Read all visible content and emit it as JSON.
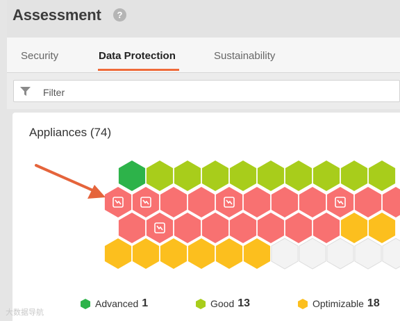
{
  "header": {
    "title": "Assessment",
    "help_icon": "question-mark-icon",
    "help_glyph": "?"
  },
  "tabs": [
    {
      "label": "Security",
      "active": false
    },
    {
      "label": "Data Protection",
      "active": true
    },
    {
      "label": "Sustainability",
      "active": false
    }
  ],
  "filter": {
    "placeholder": "Filter",
    "value": "",
    "icon": "filter-funnel-icon"
  },
  "panel": {
    "title": "Appliances (74)"
  },
  "colors": {
    "advanced": "#2db34a",
    "good": "#a8cd1b",
    "poor": "#f87171",
    "optimizable": "#fcbf1e",
    "empty": "#f3f3f3",
    "empty_stroke": "#dcdcdc",
    "tab_accent": "#ef6b3a",
    "arrow": "#e5643b"
  },
  "hex_rows": [
    [
      "advanced",
      "good",
      "good",
      "good",
      "good",
      "good",
      "good",
      "good",
      "good",
      "good"
    ],
    [
      "poor-flag",
      "poor-flag",
      "poor",
      "poor",
      "poor-flag",
      "poor",
      "poor",
      "poor",
      "poor-flag",
      "poor",
      "poor"
    ],
    [
      "poor",
      "poor-flag",
      "poor",
      "poor",
      "poor",
      "poor",
      "poor",
      "poor",
      "optimizable",
      "optimizable"
    ],
    [
      "optimizable",
      "optimizable",
      "optimizable",
      "optimizable",
      "optimizable",
      "optimizable",
      "empty",
      "empty",
      "empty",
      "empty",
      "empty"
    ]
  ],
  "legend": [
    {
      "label": "Advanced",
      "count": "1",
      "status": "advanced"
    },
    {
      "label": "Good",
      "count": "13",
      "status": "good"
    },
    {
      "label": "Optimizable",
      "count": "18",
      "status": "optimizable"
    }
  ],
  "watermark": "大数据导航"
}
